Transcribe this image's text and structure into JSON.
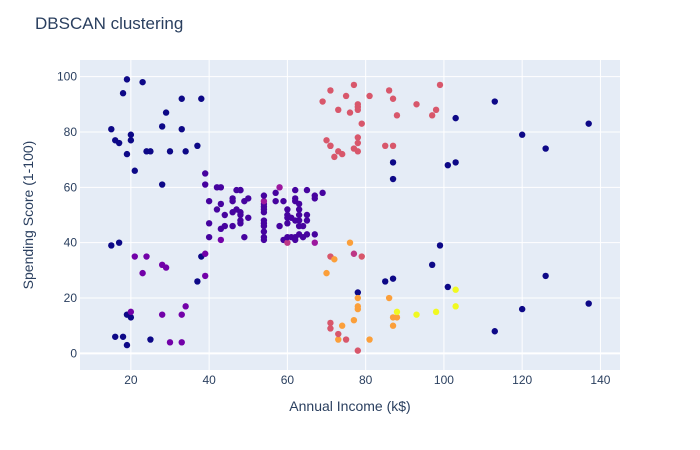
{
  "chart_data": {
    "type": "scatter",
    "title": "DBSCAN clustering",
    "xlabel": "Annual Income (k$)",
    "ylabel": "Spending Score (1-100)",
    "xlim": [
      7,
      145
    ],
    "ylim": [
      -6,
      106
    ],
    "xticks": [
      20,
      40,
      60,
      80,
      100,
      120,
      140
    ],
    "yticks": [
      0,
      20,
      40,
      60,
      80,
      100
    ],
    "grid": true,
    "colors": {
      "plot_bg": "#e5ecf6",
      "grid": "#ffffff",
      "text": "#2a3f5f",
      "cluster_noise": "#0d0887",
      "cluster_center": "#46039f",
      "cluster_purple": "#7201a8",
      "cluster_magenta": "#9c179e",
      "cluster_pink": "#bd3786",
      "cluster_rose": "#d8576b",
      "cluster_orange": "#fb9f3a",
      "cluster_yellow": "#f0f921"
    },
    "points": [
      {
        "x": 15,
        "y": 81,
        "c": "#0d0887"
      },
      {
        "x": 16,
        "y": 77,
        "c": "#0d0887"
      },
      {
        "x": 17,
        "y": 76,
        "c": "#0d0887"
      },
      {
        "x": 18,
        "y": 94,
        "c": "#0d0887"
      },
      {
        "x": 19,
        "y": 72,
        "c": "#0d0887"
      },
      {
        "x": 19,
        "y": 99,
        "c": "#0d0887"
      },
      {
        "x": 20,
        "y": 77,
        "c": "#0d0887"
      },
      {
        "x": 20,
        "y": 79,
        "c": "#0d0887"
      },
      {
        "x": 21,
        "y": 66,
        "c": "#0d0887"
      },
      {
        "x": 23,
        "y": 98,
        "c": "#0d0887"
      },
      {
        "x": 24,
        "y": 73,
        "c": "#0d0887"
      },
      {
        "x": 25,
        "y": 73,
        "c": "#0d0887"
      },
      {
        "x": 28,
        "y": 82,
        "c": "#0d0887"
      },
      {
        "x": 28,
        "y": 61,
        "c": "#0d0887"
      },
      {
        "x": 29,
        "y": 87,
        "c": "#0d0887"
      },
      {
        "x": 30,
        "y": 73,
        "c": "#0d0887"
      },
      {
        "x": 33,
        "y": 92,
        "c": "#0d0887"
      },
      {
        "x": 33,
        "y": 81,
        "c": "#0d0887"
      },
      {
        "x": 34,
        "y": 73,
        "c": "#0d0887"
      },
      {
        "x": 37,
        "y": 75,
        "c": "#0d0887"
      },
      {
        "x": 38,
        "y": 92,
        "c": "#0d0887"
      },
      {
        "x": 15,
        "y": 39,
        "c": "#0d0887"
      },
      {
        "x": 17,
        "y": 40,
        "c": "#0d0887"
      },
      {
        "x": 16,
        "y": 6,
        "c": "#0d0887"
      },
      {
        "x": 18,
        "y": 6,
        "c": "#0d0887"
      },
      {
        "x": 19,
        "y": 3,
        "c": "#0d0887"
      },
      {
        "x": 19,
        "y": 14,
        "c": "#0d0887"
      },
      {
        "x": 20,
        "y": 13,
        "c": "#0d0887"
      },
      {
        "x": 20,
        "y": 15,
        "c": "#7201a8"
      },
      {
        "x": 21,
        "y": 35,
        "c": "#7201a8"
      },
      {
        "x": 23,
        "y": 29,
        "c": "#7201a8"
      },
      {
        "x": 24,
        "y": 35,
        "c": "#7201a8"
      },
      {
        "x": 25,
        "y": 5,
        "c": "#0d0887"
      },
      {
        "x": 28,
        "y": 32,
        "c": "#7201a8"
      },
      {
        "x": 28,
        "y": 14,
        "c": "#7201a8"
      },
      {
        "x": 29,
        "y": 31,
        "c": "#7201a8"
      },
      {
        "x": 30,
        "y": 4,
        "c": "#7201a8"
      },
      {
        "x": 33,
        "y": 4,
        "c": "#7201a8"
      },
      {
        "x": 33,
        "y": 14,
        "c": "#7201a8"
      },
      {
        "x": 34,
        "y": 17,
        "c": "#7201a8"
      },
      {
        "x": 37,
        "y": 26,
        "c": "#0d0887"
      },
      {
        "x": 38,
        "y": 35,
        "c": "#0d0887"
      },
      {
        "x": 39,
        "y": 36,
        "c": "#7201a8"
      },
      {
        "x": 39,
        "y": 28,
        "c": "#7201a8"
      },
      {
        "x": 39,
        "y": 61,
        "c": "#46039f"
      },
      {
        "x": 39,
        "y": 65,
        "c": "#46039f"
      },
      {
        "x": 40,
        "y": 55,
        "c": "#46039f"
      },
      {
        "x": 40,
        "y": 47,
        "c": "#46039f"
      },
      {
        "x": 40,
        "y": 42,
        "c": "#46039f"
      },
      {
        "x": 42,
        "y": 60,
        "c": "#46039f"
      },
      {
        "x": 42,
        "y": 52,
        "c": "#46039f"
      },
      {
        "x": 43,
        "y": 60,
        "c": "#46039f"
      },
      {
        "x": 43,
        "y": 54,
        "c": "#46039f"
      },
      {
        "x": 43,
        "y": 45,
        "c": "#46039f"
      },
      {
        "x": 43,
        "y": 41,
        "c": "#7201a8"
      },
      {
        "x": 44,
        "y": 50,
        "c": "#46039f"
      },
      {
        "x": 44,
        "y": 46,
        "c": "#46039f"
      },
      {
        "x": 46,
        "y": 51,
        "c": "#46039f"
      },
      {
        "x": 46,
        "y": 46,
        "c": "#46039f"
      },
      {
        "x": 46,
        "y": 56,
        "c": "#46039f"
      },
      {
        "x": 46,
        "y": 55,
        "c": "#46039f"
      },
      {
        "x": 47,
        "y": 52,
        "c": "#46039f"
      },
      {
        "x": 47,
        "y": 59,
        "c": "#46039f"
      },
      {
        "x": 48,
        "y": 51,
        "c": "#46039f"
      },
      {
        "x": 48,
        "y": 59,
        "c": "#46039f"
      },
      {
        "x": 48,
        "y": 50,
        "c": "#46039f"
      },
      {
        "x": 48,
        "y": 48,
        "c": "#46039f"
      },
      {
        "x": 48,
        "y": 59,
        "c": "#46039f"
      },
      {
        "x": 48,
        "y": 47,
        "c": "#46039f"
      },
      {
        "x": 49,
        "y": 55,
        "c": "#46039f"
      },
      {
        "x": 49,
        "y": 42,
        "c": "#46039f"
      },
      {
        "x": 50,
        "y": 49,
        "c": "#46039f"
      },
      {
        "x": 50,
        "y": 56,
        "c": "#46039f"
      },
      {
        "x": 54,
        "y": 47,
        "c": "#46039f"
      },
      {
        "x": 54,
        "y": 54,
        "c": "#46039f"
      },
      {
        "x": 54,
        "y": 53,
        "c": "#46039f"
      },
      {
        "x": 54,
        "y": 48,
        "c": "#46039f"
      },
      {
        "x": 54,
        "y": 52,
        "c": "#46039f"
      },
      {
        "x": 54,
        "y": 42,
        "c": "#46039f"
      },
      {
        "x": 54,
        "y": 51,
        "c": "#46039f"
      },
      {
        "x": 54,
        "y": 55,
        "c": "#9c179e"
      },
      {
        "x": 54,
        "y": 41,
        "c": "#46039f"
      },
      {
        "x": 54,
        "y": 44,
        "c": "#46039f"
      },
      {
        "x": 54,
        "y": 57,
        "c": "#46039f"
      },
      {
        "x": 54,
        "y": 46,
        "c": "#46039f"
      },
      {
        "x": 57,
        "y": 58,
        "c": "#46039f"
      },
      {
        "x": 57,
        "y": 55,
        "c": "#46039f"
      },
      {
        "x": 58,
        "y": 60,
        "c": "#9c179e"
      },
      {
        "x": 58,
        "y": 46,
        "c": "#46039f"
      },
      {
        "x": 59,
        "y": 55,
        "c": "#46039f"
      },
      {
        "x": 59,
        "y": 41,
        "c": "#46039f"
      },
      {
        "x": 60,
        "y": 49,
        "c": "#46039f"
      },
      {
        "x": 60,
        "y": 40,
        "c": "#bd3786"
      },
      {
        "x": 60,
        "y": 42,
        "c": "#46039f"
      },
      {
        "x": 60,
        "y": 52,
        "c": "#46039f"
      },
      {
        "x": 60,
        "y": 47,
        "c": "#46039f"
      },
      {
        "x": 60,
        "y": 50,
        "c": "#46039f"
      },
      {
        "x": 61,
        "y": 42,
        "c": "#46039f"
      },
      {
        "x": 61,
        "y": 49,
        "c": "#46039f"
      },
      {
        "x": 62,
        "y": 41,
        "c": "#46039f"
      },
      {
        "x": 62,
        "y": 48,
        "c": "#46039f"
      },
      {
        "x": 62,
        "y": 59,
        "c": "#46039f"
      },
      {
        "x": 62,
        "y": 55,
        "c": "#46039f"
      },
      {
        "x": 62,
        "y": 56,
        "c": "#46039f"
      },
      {
        "x": 62,
        "y": 42,
        "c": "#46039f"
      },
      {
        "x": 63,
        "y": 50,
        "c": "#46039f"
      },
      {
        "x": 63,
        "y": 46,
        "c": "#46039f"
      },
      {
        "x": 63,
        "y": 43,
        "c": "#46039f"
      },
      {
        "x": 63,
        "y": 48,
        "c": "#46039f"
      },
      {
        "x": 63,
        "y": 52,
        "c": "#46039f"
      },
      {
        "x": 63,
        "y": 54,
        "c": "#46039f"
      },
      {
        "x": 64,
        "y": 42,
        "c": "#46039f"
      },
      {
        "x": 64,
        "y": 46,
        "c": "#46039f"
      },
      {
        "x": 65,
        "y": 48,
        "c": "#46039f"
      },
      {
        "x": 65,
        "y": 50,
        "c": "#46039f"
      },
      {
        "x": 65,
        "y": 43,
        "c": "#46039f"
      },
      {
        "x": 65,
        "y": 59,
        "c": "#46039f"
      },
      {
        "x": 67,
        "y": 43,
        "c": "#46039f"
      },
      {
        "x": 67,
        "y": 57,
        "c": "#46039f"
      },
      {
        "x": 67,
        "y": 56,
        "c": "#46039f"
      },
      {
        "x": 67,
        "y": 40,
        "c": "#9c179e"
      },
      {
        "x": 69,
        "y": 58,
        "c": "#46039f"
      },
      {
        "x": 69,
        "y": 91,
        "c": "#d8576b"
      },
      {
        "x": 70,
        "y": 77,
        "c": "#d8576b"
      },
      {
        "x": 71,
        "y": 95,
        "c": "#d8576b"
      },
      {
        "x": 71,
        "y": 75,
        "c": "#d8576b"
      },
      {
        "x": 71,
        "y": 75,
        "c": "#d8576b"
      },
      {
        "x": 72,
        "y": 71,
        "c": "#d8576b"
      },
      {
        "x": 73,
        "y": 88,
        "c": "#d8576b"
      },
      {
        "x": 73,
        "y": 73,
        "c": "#d8576b"
      },
      {
        "x": 74,
        "y": 72,
        "c": "#d8576b"
      },
      {
        "x": 75,
        "y": 93,
        "c": "#d8576b"
      },
      {
        "x": 76,
        "y": 87,
        "c": "#d8576b"
      },
      {
        "x": 77,
        "y": 97,
        "c": "#d8576b"
      },
      {
        "x": 77,
        "y": 74,
        "c": "#d8576b"
      },
      {
        "x": 78,
        "y": 90,
        "c": "#d8576b"
      },
      {
        "x": 78,
        "y": 88,
        "c": "#d8576b"
      },
      {
        "x": 78,
        "y": 89,
        "c": "#d8576b"
      },
      {
        "x": 78,
        "y": 78,
        "c": "#d8576b"
      },
      {
        "x": 78,
        "y": 73,
        "c": "#d8576b"
      },
      {
        "x": 78,
        "y": 76,
        "c": "#d8576b"
      },
      {
        "x": 79,
        "y": 83,
        "c": "#d8576b"
      },
      {
        "x": 81,
        "y": 93,
        "c": "#d8576b"
      },
      {
        "x": 85,
        "y": 75,
        "c": "#d8576b"
      },
      {
        "x": 86,
        "y": 95,
        "c": "#d8576b"
      },
      {
        "x": 87,
        "y": 92,
        "c": "#d8576b"
      },
      {
        "x": 87,
        "y": 75,
        "c": "#d8576b"
      },
      {
        "x": 88,
        "y": 86,
        "c": "#d8576b"
      },
      {
        "x": 93,
        "y": 90,
        "c": "#d8576b"
      },
      {
        "x": 97,
        "y": 86,
        "c": "#d8576b"
      },
      {
        "x": 98,
        "y": 88,
        "c": "#d8576b"
      },
      {
        "x": 99,
        "y": 97,
        "c": "#d8576b"
      },
      {
        "x": 87,
        "y": 69,
        "c": "#0d0887"
      },
      {
        "x": 87,
        "y": 63,
        "c": "#0d0887"
      },
      {
        "x": 101,
        "y": 68,
        "c": "#0d0887"
      },
      {
        "x": 103,
        "y": 69,
        "c": "#0d0887"
      },
      {
        "x": 103,
        "y": 85,
        "c": "#0d0887"
      },
      {
        "x": 113,
        "y": 91,
        "c": "#0d0887"
      },
      {
        "x": 120,
        "y": 79,
        "c": "#0d0887"
      },
      {
        "x": 126,
        "y": 74,
        "c": "#0d0887"
      },
      {
        "x": 137,
        "y": 83,
        "c": "#0d0887"
      },
      {
        "x": 70,
        "y": 29,
        "c": "#fb9f3a"
      },
      {
        "x": 71,
        "y": 35,
        "c": "#d8576b"
      },
      {
        "x": 71,
        "y": 11,
        "c": "#d8576b"
      },
      {
        "x": 71,
        "y": 9,
        "c": "#d8576b"
      },
      {
        "x": 72,
        "y": 34,
        "c": "#fb9f3a"
      },
      {
        "x": 73,
        "y": 5,
        "c": "#fb9f3a"
      },
      {
        "x": 73,
        "y": 7,
        "c": "#d8576b"
      },
      {
        "x": 74,
        "y": 10,
        "c": "#fb9f3a"
      },
      {
        "x": 75,
        "y": 5,
        "c": "#d8576b"
      },
      {
        "x": 76,
        "y": 40,
        "c": "#fb9f3a"
      },
      {
        "x": 77,
        "y": 12,
        "c": "#fb9f3a"
      },
      {
        "x": 77,
        "y": 36,
        "c": "#bd3786"
      },
      {
        "x": 78,
        "y": 22,
        "c": "#0d0887"
      },
      {
        "x": 78,
        "y": 17,
        "c": "#fb9f3a"
      },
      {
        "x": 78,
        "y": 20,
        "c": "#fb9f3a"
      },
      {
        "x": 78,
        "y": 16,
        "c": "#fb9f3a"
      },
      {
        "x": 78,
        "y": 1,
        "c": "#d8576b"
      },
      {
        "x": 79,
        "y": 35,
        "c": "#d8576b"
      },
      {
        "x": 81,
        "y": 5,
        "c": "#fb9f3a"
      },
      {
        "x": 85,
        "y": 26,
        "c": "#0d0887"
      },
      {
        "x": 86,
        "y": 20,
        "c": "#fb9f3a"
      },
      {
        "x": 87,
        "y": 27,
        "c": "#0d0887"
      },
      {
        "x": 87,
        "y": 13,
        "c": "#fb9f3a"
      },
      {
        "x": 87,
        "y": 10,
        "c": "#fb9f3a"
      },
      {
        "x": 88,
        "y": 13,
        "c": "#fb9f3a"
      },
      {
        "x": 88,
        "y": 15,
        "c": "#f0f921"
      },
      {
        "x": 93,
        "y": 14,
        "c": "#f0f921"
      },
      {
        "x": 97,
        "y": 32,
        "c": "#0d0887"
      },
      {
        "x": 98,
        "y": 15,
        "c": "#f0f921"
      },
      {
        "x": 99,
        "y": 39,
        "c": "#0d0887"
      },
      {
        "x": 101,
        "y": 24,
        "c": "#0d0887"
      },
      {
        "x": 103,
        "y": 17,
        "c": "#f0f921"
      },
      {
        "x": 103,
        "y": 23,
        "c": "#f0f921"
      },
      {
        "x": 113,
        "y": 8,
        "c": "#0d0887"
      },
      {
        "x": 120,
        "y": 16,
        "c": "#0d0887"
      },
      {
        "x": 126,
        "y": 28,
        "c": "#0d0887"
      },
      {
        "x": 137,
        "y": 18,
        "c": "#0d0887"
      }
    ]
  }
}
